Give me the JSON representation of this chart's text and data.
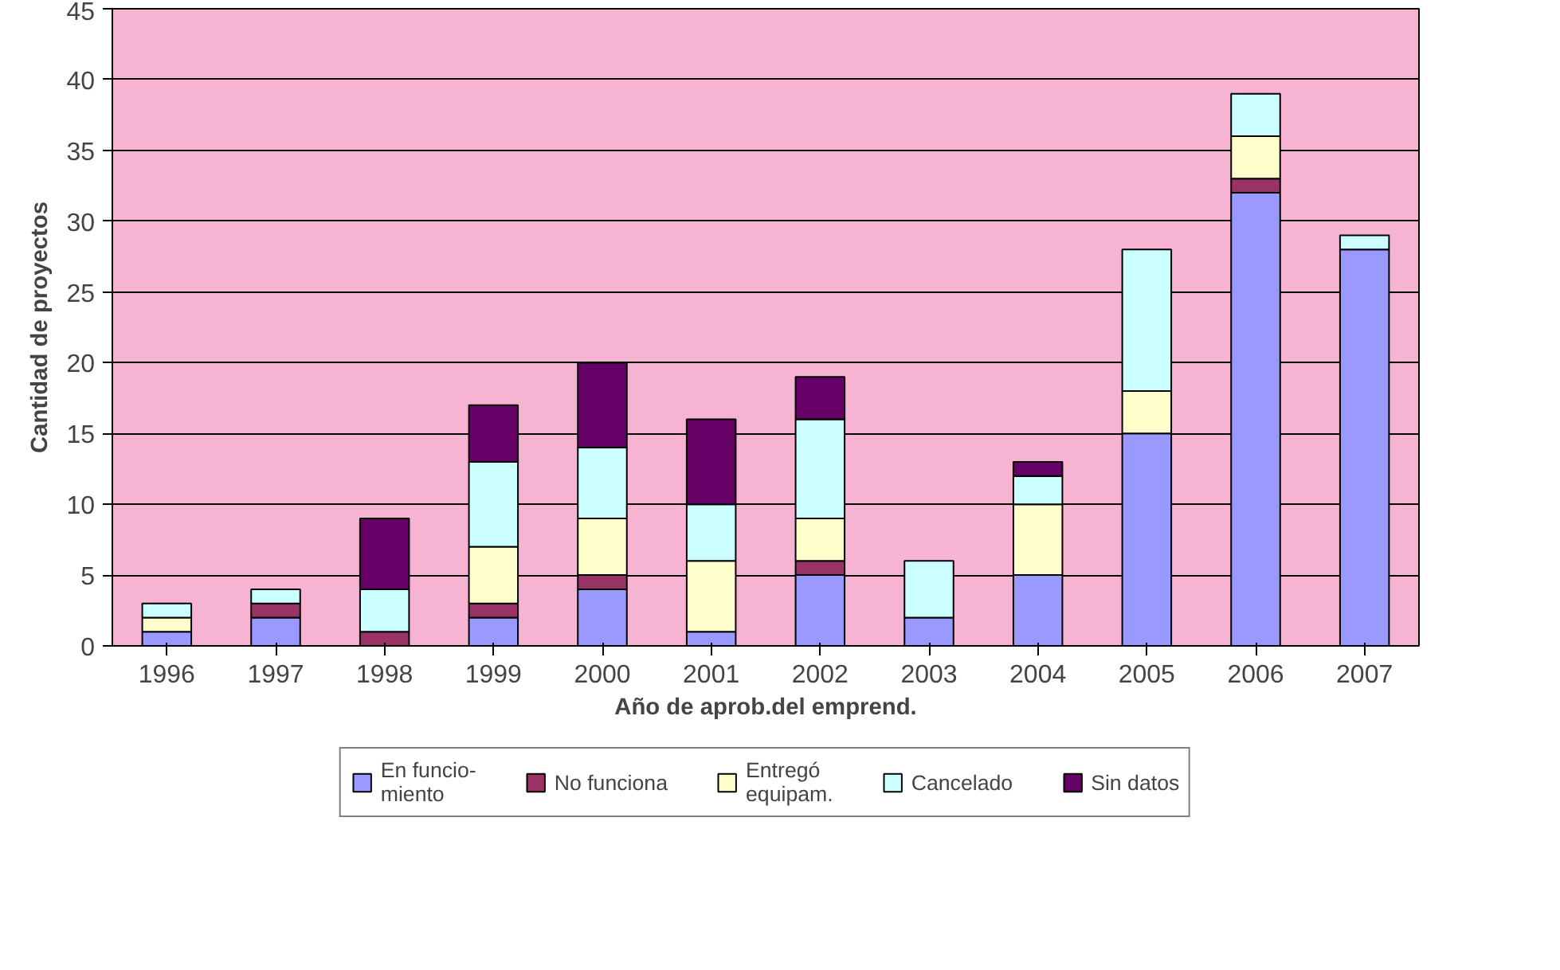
{
  "chart_data": {
    "type": "bar",
    "stacked": true,
    "xlabel": "Año de aprob.del emprend.",
    "ylabel": "Cantidad de proyectos",
    "categories": [
      "1996",
      "1997",
      "1998",
      "1999",
      "2000",
      "2001",
      "2002",
      "2003",
      "2004",
      "2005",
      "2006",
      "2007"
    ],
    "series": [
      {
        "name": "En funcio-\nmiento",
        "color": "#9999ff",
        "values": [
          1,
          2,
          0,
          2,
          4,
          1,
          5,
          2,
          5,
          15,
          32,
          28
        ]
      },
      {
        "name": "No funciona",
        "color": "#993366",
        "values": [
          0,
          1,
          1,
          1,
          1,
          0,
          1,
          0,
          0,
          0,
          1,
          0
        ]
      },
      {
        "name": "Entregó\nequipam.",
        "color": "#ffffcc",
        "values": [
          1,
          0,
          0,
          4,
          4,
          5,
          3,
          0,
          5,
          3,
          3,
          0
        ]
      },
      {
        "name": "Cancelado",
        "color": "#ccffff",
        "values": [
          1,
          1,
          3,
          6,
          5,
          4,
          7,
          4,
          2,
          10,
          3,
          1
        ]
      },
      {
        "name": "Sin datos",
        "color": "#660066",
        "values": [
          0,
          0,
          5,
          4,
          6,
          6,
          3,
          0,
          1,
          0,
          0,
          0
        ]
      }
    ],
    "ylim": [
      0,
      45
    ],
    "yticks": [
      0,
      5,
      10,
      15,
      20,
      25,
      30,
      35,
      40,
      45
    ],
    "grid": "y",
    "legend": "bottom"
  }
}
